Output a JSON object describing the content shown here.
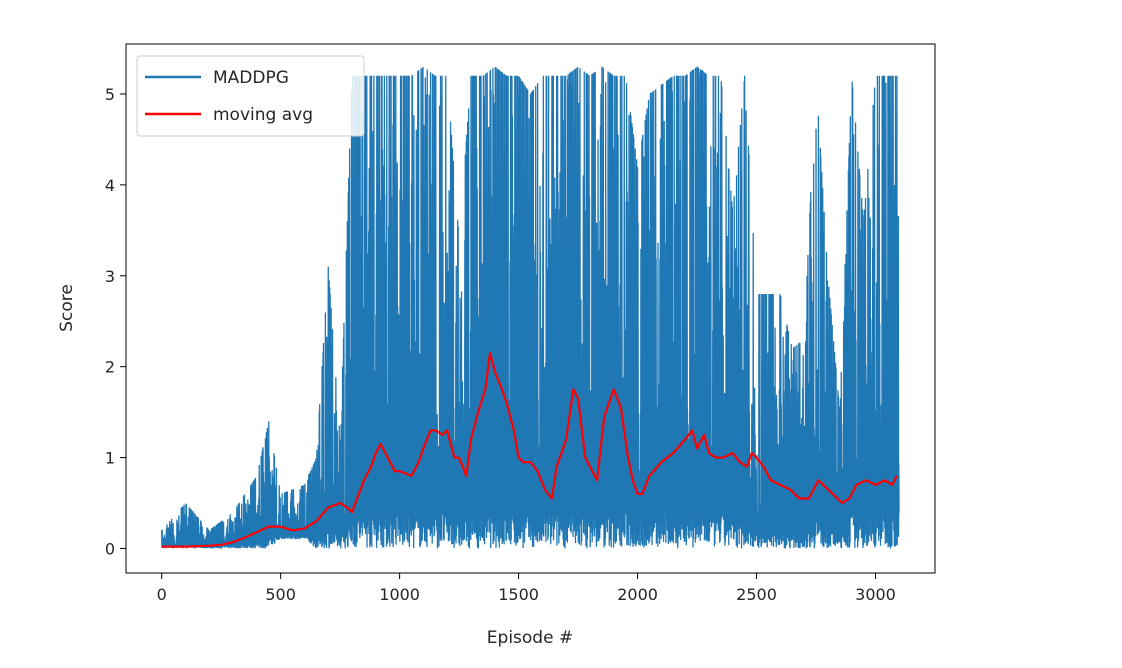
{
  "chart_data": {
    "type": "line",
    "title": "",
    "xlabel": "Episode #",
    "ylabel": "Score",
    "xlim": [
      -150,
      3250
    ],
    "ylim": [
      -0.27,
      5.55
    ],
    "x_ticks": [
      0,
      500,
      1000,
      1500,
      2000,
      2500,
      3000
    ],
    "x_tick_labels": [
      "0",
      "500",
      "1000",
      "1500",
      "2000",
      "2500",
      "3000"
    ],
    "y_ticks": [
      0,
      1,
      2,
      3,
      4,
      5
    ],
    "y_tick_labels": [
      "0",
      "1",
      "2",
      "3",
      "4",
      "5"
    ],
    "grid": false,
    "legend_position": "top-left",
    "episodes": 3100,
    "series": [
      {
        "name": "MADDPG",
        "color": "#1f77b4",
        "style": "dense-oscillation",
        "x": [
          0,
          100,
          200,
          300,
          400,
          450,
          500,
          600,
          650,
          700,
          750,
          800,
          850,
          900,
          950,
          1000,
          1050,
          1100,
          1150,
          1200,
          1250,
          1300,
          1350,
          1400,
          1450,
          1500,
          1550,
          1600,
          1650,
          1700,
          1750,
          1800,
          1850,
          1900,
          1950,
          2000,
          2050,
          2100,
          2150,
          2200,
          2250,
          2300,
          2350,
          2400,
          2450,
          2500,
          2550,
          2600,
          2650,
          2700,
          2750,
          2800,
          2850,
          2900,
          2950,
          3000,
          3050,
          3090
        ],
        "low": [
          0,
          0,
          0,
          0,
          0,
          0,
          0.1,
          0.1,
          0,
          0,
          0,
          0,
          0,
          0,
          0,
          0,
          0,
          0,
          0,
          0,
          0,
          0,
          0,
          0,
          0,
          0,
          0,
          0,
          0,
          0,
          0,
          0,
          0,
          0,
          0,
          0,
          0,
          0,
          0,
          0,
          0,
          0,
          0,
          0,
          0,
          0,
          0,
          0,
          0,
          0,
          0,
          0,
          0,
          0,
          0,
          0,
          0,
          0
        ],
        "high": [
          0.2,
          0.5,
          0.2,
          0.4,
          0.8,
          1.4,
          0.6,
          0.7,
          1.0,
          3.1,
          1.2,
          5.2,
          5.2,
          5.2,
          5.2,
          5.2,
          5.2,
          5.3,
          5.2,
          5.2,
          3.4,
          5.2,
          5.2,
          5.3,
          5.2,
          5.2,
          5.0,
          5.2,
          5.2,
          5.2,
          5.3,
          5.2,
          5.3,
          5.2,
          5.2,
          4.2,
          5.0,
          5.1,
          5.2,
          5.2,
          5.3,
          5.2,
          5.2,
          3.7,
          5.2,
          2.8,
          2.8,
          2.8,
          2.2,
          2.3,
          5.2,
          3.0,
          1.5,
          5.2,
          3.6,
          5.2,
          5.2,
          5.2
        ]
      },
      {
        "name": "moving avg",
        "color": "#ff0000",
        "x": [
          0,
          100,
          200,
          250,
          300,
          350,
          400,
          450,
          500,
          550,
          600,
          650,
          700,
          750,
          780,
          800,
          850,
          880,
          900,
          920,
          950,
          980,
          1000,
          1050,
          1080,
          1100,
          1130,
          1150,
          1180,
          1200,
          1230,
          1250,
          1280,
          1300,
          1330,
          1360,
          1380,
          1400,
          1430,
          1450,
          1480,
          1500,
          1520,
          1550,
          1580,
          1610,
          1640,
          1660,
          1700,
          1730,
          1750,
          1780,
          1800,
          1830,
          1860,
          1900,
          1930,
          1960,
          1980,
          2000,
          2020,
          2050,
          2100,
          2150,
          2200,
          2230,
          2250,
          2280,
          2300,
          2330,
          2360,
          2400,
          2430,
          2460,
          2480,
          2500,
          2530,
          2560,
          2600,
          2640,
          2680,
          2720,
          2760,
          2780,
          2820,
          2860,
          2890,
          2920,
          2960,
          3000,
          3040,
          3070,
          3090
        ],
        "y": [
          0.02,
          0.02,
          0.03,
          0.04,
          0.07,
          0.12,
          0.18,
          0.24,
          0.24,
          0.2,
          0.22,
          0.3,
          0.45,
          0.5,
          0.45,
          0.4,
          0.75,
          0.9,
          1.05,
          1.15,
          1.0,
          0.85,
          0.85,
          0.8,
          0.95,
          1.1,
          1.3,
          1.3,
          1.25,
          1.3,
          1.0,
          1.0,
          0.8,
          1.2,
          1.5,
          1.75,
          2.15,
          1.95,
          1.75,
          1.6,
          1.3,
          1.0,
          0.95,
          0.95,
          0.85,
          0.65,
          0.55,
          0.9,
          1.2,
          1.75,
          1.65,
          1.0,
          0.9,
          0.75,
          1.45,
          1.75,
          1.55,
          1.0,
          0.75,
          0.6,
          0.6,
          0.8,
          0.95,
          1.05,
          1.2,
          1.3,
          1.1,
          1.25,
          1.05,
          1.0,
          1.0,
          1.05,
          0.95,
          0.9,
          1.05,
          1.0,
          0.9,
          0.75,
          0.7,
          0.65,
          0.55,
          0.55,
          0.75,
          0.7,
          0.6,
          0.5,
          0.55,
          0.7,
          0.75,
          0.7,
          0.75,
          0.7,
          0.8
        ]
      }
    ]
  }
}
